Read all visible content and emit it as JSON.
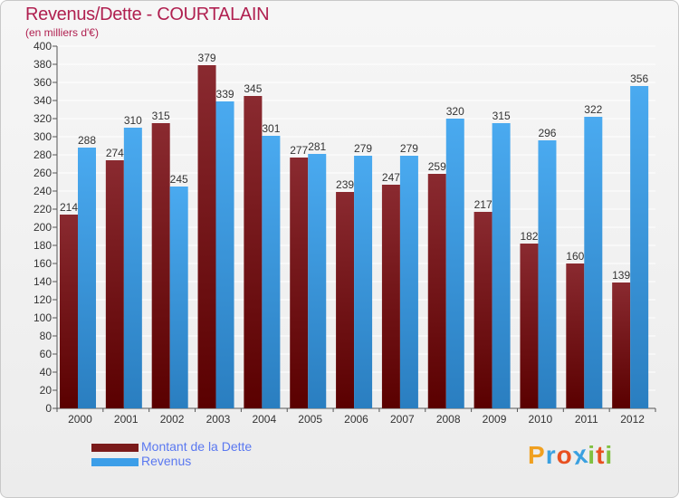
{
  "header": {
    "title": "Revenus/Dette - COURTALAIN",
    "subtitle": "(en milliers d'€)"
  },
  "chart_data": {
    "type": "bar",
    "title": "Revenus/Dette - COURTALAIN",
    "subtitle": "(en milliers d'€)",
    "xlabel": "",
    "ylabel": "",
    "categories": [
      "2000",
      "2001",
      "2002",
      "2003",
      "2004",
      "2005",
      "2006",
      "2007",
      "2008",
      "2009",
      "2010",
      "2011",
      "2012"
    ],
    "series": [
      {
        "name": "Montant de la Dette",
        "color": "#7a1a1a",
        "values": [
          214,
          274,
          315,
          379,
          345,
          277,
          239,
          247,
          259,
          217,
          182,
          160,
          139
        ]
      },
      {
        "name": "Revenus",
        "color": "#3c9ee8",
        "values": [
          288,
          310,
          245,
          339,
          301,
          281,
          279,
          279,
          320,
          315,
          296,
          322,
          356
        ]
      }
    ],
    "ylim": [
      0,
      400
    ],
    "yticks": [
      0,
      20,
      40,
      60,
      80,
      100,
      120,
      140,
      160,
      180,
      200,
      220,
      240,
      260,
      280,
      300,
      320,
      340,
      360,
      380,
      400
    ],
    "grid": true,
    "legend_position": "bottom-left"
  },
  "legend": {
    "items": [
      {
        "label": "Montant de la Dette",
        "color": "#7a1a1a"
      },
      {
        "label": "Revenus",
        "color": "#3c9ee8"
      }
    ]
  },
  "logo": {
    "letters": [
      {
        "char": "P",
        "color": "#f0a020"
      },
      {
        "char": "r",
        "color": "#3aa0e0"
      },
      {
        "char": "o",
        "color": "#e85020"
      },
      {
        "char": "x",
        "color": "#3aa0e0"
      },
      {
        "char": "i",
        "color": "#80c040"
      },
      {
        "char": "t",
        "color": "#e85020"
      },
      {
        "char": "i",
        "color": "#80c040"
      }
    ]
  }
}
